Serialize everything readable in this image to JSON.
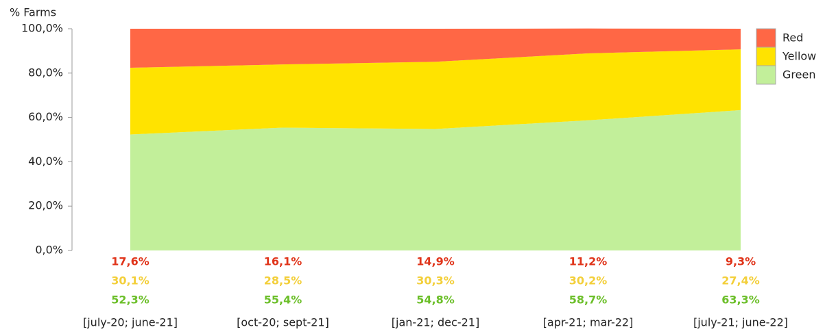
{
  "chart_data": {
    "type": "stacked-area",
    "y_axis_label": "% Farms",
    "categories": [
      "[july-20; june-21]",
      "[oct-20; sept-21]",
      "[jan-21; dec-21]",
      "[apr-21; mar-22]",
      "[july-21; june-22]"
    ],
    "series": [
      {
        "name": "Green",
        "color": "#c2ef9a",
        "label_color": "#6cbf2a",
        "values": [
          52.3,
          55.4,
          54.8,
          58.7,
          63.3
        ],
        "value_labels": [
          "52,3%",
          "55,4%",
          "54,8%",
          "58,7%",
          "63,3%"
        ]
      },
      {
        "name": "Yellow",
        "color": "#ffe300",
        "label_color": "#f3cf3a",
        "values": [
          30.1,
          28.5,
          30.3,
          30.2,
          27.4
        ],
        "value_labels": [
          "30,1%",
          "28,5%",
          "30,3%",
          "30,2%",
          "27,4%"
        ]
      },
      {
        "name": "Red",
        "color": "#ff6745",
        "label_color": "#e0341a",
        "values": [
          17.6,
          16.1,
          14.9,
          11.2,
          9.3
        ],
        "value_labels": [
          "17,6%",
          "16,1%",
          "14,9%",
          "11,2%",
          "9,3%"
        ]
      }
    ],
    "ylim": [
      0,
      100
    ],
    "yticks": [
      {
        "value": 0,
        "label": "0,0%"
      },
      {
        "value": 20,
        "label": "20,0%"
      },
      {
        "value": 40,
        "label": "40,0%"
      },
      {
        "value": 60,
        "label": "60,0%"
      },
      {
        "value": 80,
        "label": "80,0%"
      },
      {
        "value": 100,
        "label": "100,0%"
      }
    ],
    "legend": "top-right"
  }
}
